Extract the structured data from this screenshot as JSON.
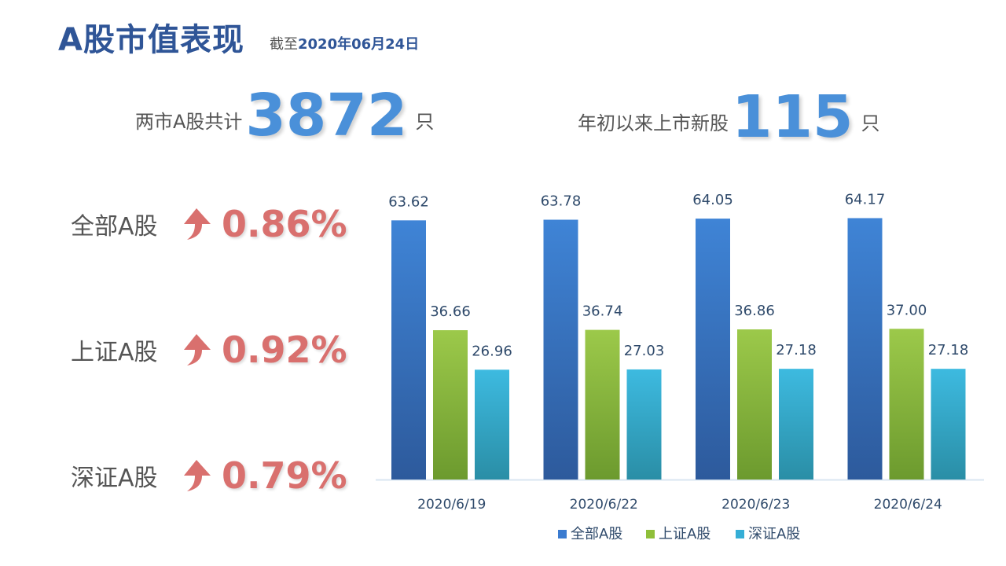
{
  "header": {
    "title": "A股市值表现",
    "date_prefix": "截至",
    "date_value": "2020年06月24日"
  },
  "stats": [
    {
      "label": "两市A股共计",
      "value": "3872",
      "unit": "只"
    },
    {
      "label": "年初以来上市新股",
      "value": "115",
      "unit": "只"
    }
  ],
  "changes": [
    {
      "label": "全部A股",
      "value": "0.86%",
      "direction": "up"
    },
    {
      "label": "上证A股",
      "value": "0.92%",
      "direction": "up"
    },
    {
      "label": "深证A股",
      "value": "0.79%",
      "direction": "up"
    }
  ],
  "colors": {
    "title": "#2f5597",
    "accent_number": "#4a90d9",
    "pct_up": "#d9706e",
    "series_all": "#3a7bd0",
    "series_sh": "#8fbf3a",
    "series_sz": "#35aed6"
  },
  "chart_data": {
    "type": "bar",
    "categories": [
      "2020/6/19",
      "2020/6/22",
      "2020/6/23",
      "2020/6/24"
    ],
    "series": [
      {
        "name": "全部A股",
        "values": [
          63.62,
          63.78,
          64.05,
          64.17
        ],
        "color": "#3a7bd0"
      },
      {
        "name": "上证A股",
        "values": [
          36.66,
          36.74,
          36.86,
          37.0
        ],
        "color": "#8fbf3a"
      },
      {
        "name": "深证A股",
        "values": [
          26.96,
          27.03,
          27.18,
          27.18
        ],
        "color": "#35aed6"
      }
    ],
    "value_format": "0.00",
    "ylim": [
      0,
      70
    ],
    "grid": false,
    "legend_position": "bottom"
  }
}
